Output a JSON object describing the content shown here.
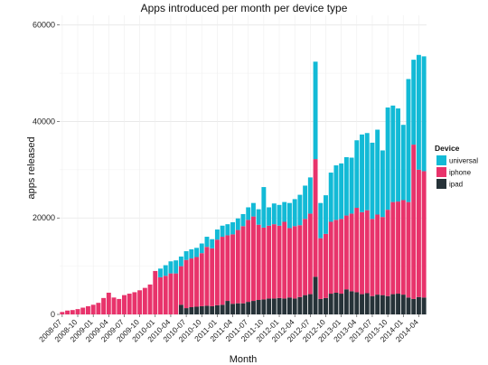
{
  "chart_data": {
    "type": "bar",
    "stacked": true,
    "title": "Apps introduced per month per device type",
    "xlabel": "Month",
    "ylabel": "apps released",
    "ylim": [
      0,
      62000
    ],
    "yticks": [
      0,
      20000,
      40000,
      60000
    ],
    "grid": true,
    "legend": {
      "title": "Device",
      "position": "right"
    },
    "x": [
      "2008-07",
      "2008-08",
      "2008-09",
      "2008-10",
      "2008-11",
      "2008-12",
      "2009-01",
      "2009-02",
      "2009-03",
      "2009-04",
      "2009-05",
      "2009-06",
      "2009-07",
      "2009-08",
      "2009-09",
      "2009-10",
      "2009-11",
      "2009-12",
      "2010-01",
      "2010-02",
      "2010-03",
      "2010-04",
      "2010-05",
      "2010-06",
      "2010-07",
      "2010-08",
      "2010-09",
      "2010-10",
      "2010-11",
      "2010-12",
      "2011-01",
      "2011-02",
      "2011-03",
      "2011-04",
      "2011-05",
      "2011-06",
      "2011-07",
      "2011-08",
      "2011-09",
      "2011-10",
      "2011-11",
      "2011-12",
      "2012-01",
      "2012-02",
      "2012-03",
      "2012-04",
      "2012-05",
      "2012-06",
      "2012-07",
      "2012-08",
      "2012-09",
      "2012-10",
      "2012-11",
      "2012-12",
      "2013-01",
      "2013-02",
      "2013-03",
      "2013-04",
      "2013-05",
      "2013-06",
      "2013-07",
      "2013-08",
      "2013-09",
      "2013-10",
      "2013-11",
      "2013-12",
      "2014-01",
      "2014-02",
      "2014-03",
      "2014-04",
      "2014-05"
    ],
    "xtick_labels": [
      "2008-07",
      "2008-10",
      "2009-01",
      "2009-04",
      "2009-07",
      "2009-10",
      "2010-01",
      "2010-04",
      "2010-07",
      "2010-10",
      "2011-01",
      "2011-04",
      "2011-07",
      "2011-10",
      "2012-01",
      "2012-04",
      "2012-07",
      "2012-10",
      "2013-01",
      "2013-04",
      "2013-07",
      "2013-10",
      "2014-01",
      "2014-04"
    ],
    "series": [
      {
        "name": "ipad",
        "color": "#263238",
        "values": [
          0,
          0,
          0,
          0,
          0,
          0,
          0,
          0,
          0,
          0,
          0,
          0,
          0,
          0,
          0,
          0,
          0,
          0,
          0,
          0,
          0,
          0,
          0,
          2000,
          1300,
          1500,
          1600,
          1700,
          1800,
          1700,
          1900,
          2000,
          2800,
          2200,
          2300,
          2300,
          2600,
          2800,
          3000,
          3100,
          3300,
          3300,
          3400,
          3300,
          3500,
          3300,
          3600,
          4000,
          4200,
          7800,
          3200,
          3400,
          4300,
          4500,
          4300,
          5200,
          4800,
          4600,
          4200,
          4400,
          3800,
          4100,
          4000,
          3800,
          4200,
          4300,
          4100,
          3500,
          3200,
          3600,
          3500
        ]
      },
      {
        "name": "iphone",
        "color": "#e8336b",
        "values": [
          500,
          800,
          900,
          1100,
          1400,
          1700,
          2000,
          2400,
          3400,
          4500,
          3500,
          3200,
          4000,
          4300,
          4600,
          5000,
          5500,
          6200,
          9000,
          7700,
          8000,
          8500,
          8500,
          8000,
          10000,
          10100,
          10300,
          11000,
          12200,
          12000,
          13600,
          14100,
          13600,
          14400,
          15200,
          16000,
          17000,
          17500,
          15600,
          14900,
          15100,
          15400,
          15000,
          15900,
          14400,
          15000,
          14900,
          15800,
          16700,
          24400,
          12600,
          13300,
          14900,
          15100,
          15500,
          15300,
          16100,
          17500,
          17000,
          17200,
          16000,
          16600,
          16200,
          17900,
          19100,
          19100,
          19600,
          19800,
          32000,
          26400,
          26200
        ]
      },
      {
        "name": "universal",
        "color": "#12bad6",
        "values": [
          0,
          0,
          0,
          0,
          0,
          0,
          0,
          0,
          0,
          0,
          0,
          0,
          0,
          0,
          0,
          0,
          0,
          0,
          0,
          1800,
          2200,
          2500,
          2700,
          2000,
          1800,
          1900,
          1900,
          2000,
          2100,
          1900,
          2100,
          2300,
          2300,
          2500,
          2400,
          2500,
          2600,
          2800,
          3200,
          8400,
          3800,
          4300,
          4300,
          4100,
          5200,
          5600,
          6300,
          6900,
          7500,
          20200,
          7300,
          8000,
          10200,
          11300,
          11500,
          12100,
          11600,
          14000,
          16100,
          16000,
          15800,
          17600,
          13800,
          21200,
          20000,
          19300,
          15600,
          25500,
          17600,
          23800,
          23800
        ]
      }
    ]
  }
}
